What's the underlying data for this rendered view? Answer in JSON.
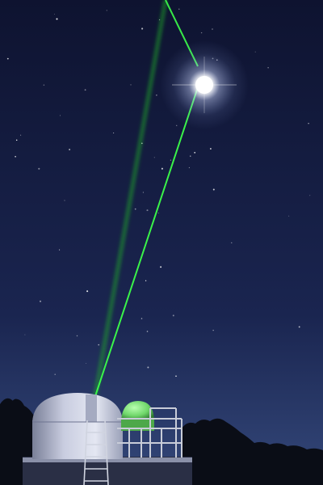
{
  "scene": {
    "subject": "observatory-laser-to-moon",
    "colors": {
      "sky_top": "#0e1330",
      "sky_mid": "#1a2550",
      "sky_horizon": "#34487a",
      "laser": "#3cff4a",
      "laser_glow": "#1fa82a",
      "moon_core": "#ffffff",
      "moon_halo": "#c9d6ff",
      "dome_light": "#d8dcea",
      "dome_shadow": "#7a8098",
      "green_dome": "#7fe07a",
      "trees": "#0a0d16",
      "railing": "#c8ccd8",
      "star": "#ffffff"
    },
    "stars_count": 60
  }
}
